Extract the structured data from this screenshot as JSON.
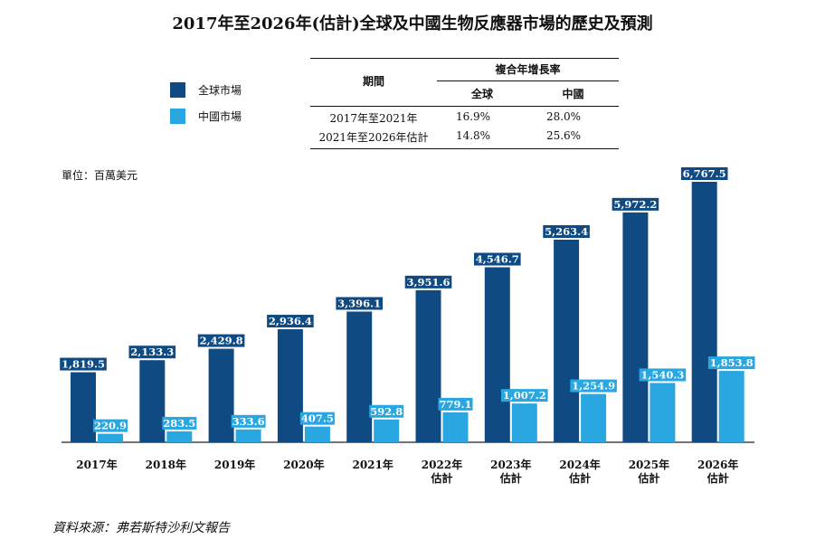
{
  "title": "2017年至2026年(估計)全球及中國生物反應器市場的歷史及預測",
  "legend": [
    {
      "label": "全球市場",
      "color": "#0f4a82"
    },
    {
      "label": "中國市場",
      "color": "#2aa6e0"
    }
  ],
  "cagr_table": {
    "header_period": "期間",
    "header_cagr": "複合年增長率",
    "col_global": "全球",
    "col_china": "中國",
    "rows": [
      {
        "period": "2017年至2021年",
        "global": "16.9%",
        "china": "28.0%"
      },
      {
        "period": "2021年至2026年估計",
        "global": "14.8%",
        "china": "25.6%"
      }
    ]
  },
  "unit_label": "單位：百萬美元",
  "source": "資料來源：弗若斯特沙利文報告",
  "chart_data": {
    "type": "bar",
    "categories": [
      "2017年",
      "2018年",
      "2019年",
      "2020年",
      "2021年",
      "2022年\n估計",
      "2023年\n估計",
      "2024年\n估計",
      "2025年\n估計",
      "2026年\n估計"
    ],
    "series": [
      {
        "name": "全球市場",
        "color": "#0f4a82",
        "values": [
          1819.5,
          2133.3,
          2429.8,
          2936.4,
          3396.1,
          3951.6,
          4546.7,
          5263.4,
          5972.2,
          6767.5
        ],
        "labels": [
          "1,819.5",
          "2,133.3",
          "2,429.8",
          "2,936.4",
          "3,396.1",
          "3,951.6",
          "4,546.7",
          "5,263.4",
          "5,972.2",
          "6,767.5"
        ]
      },
      {
        "name": "中國市場",
        "color": "#2aa6e0",
        "values": [
          220.9,
          283.5,
          333.6,
          407.5,
          592.8,
          779.1,
          1007.2,
          1254.9,
          1540.3,
          1853.8
        ],
        "labels": [
          "220.9",
          "283.5",
          "333.6",
          "407.5",
          "592.8",
          "779.1",
          "1,007.2",
          "1,254.9",
          "1,540.3",
          "1,853.8"
        ]
      }
    ],
    "ylabel": "單位：百萬美元",
    "ylim": [
      0,
      6767.5
    ],
    "grid": false
  }
}
